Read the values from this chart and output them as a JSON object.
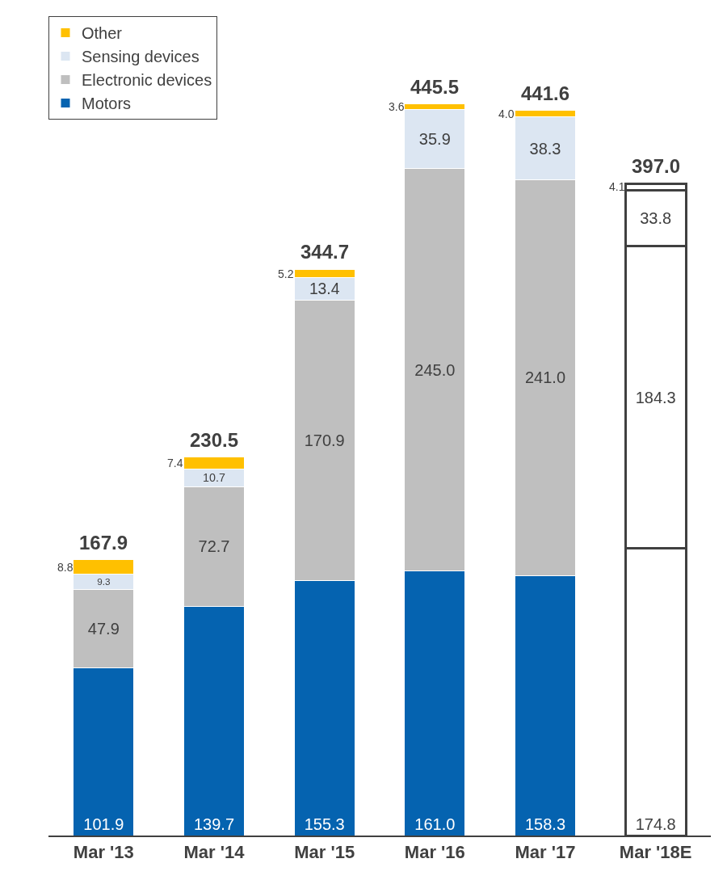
{
  "chart_data": {
    "type": "bar",
    "stacked": true,
    "legend": "top left",
    "tick_labels": "x",
    "categories": [
      "Mar '13",
      "Mar '14",
      "Mar '15",
      "Mar '16",
      "Mar '17",
      "Mar '18E"
    ],
    "series": [
      {
        "name": "Motors",
        "colors": [
          "#0563b0",
          "#0563b0",
          "#0563b0",
          "#0563b0",
          "#0563b0",
          "#ffffff"
        ],
        "values": [
          101.9,
          139.7,
          155.3,
          161.0,
          158.3,
          174.8
        ],
        "value_labels": [
          "101.9",
          "139.7",
          "155.3",
          "161.0",
          "158.3",
          "174.8"
        ]
      },
      {
        "name": "Electronic devices",
        "colors": [
          "#bfbfbf",
          "#bfbfbf",
          "#bfbfbf",
          "#bfbfbf",
          "#bfbfbf",
          "#ffffff"
        ],
        "values": [
          47.9,
          72.7,
          170.9,
          245.0,
          241.0,
          184.3
        ],
        "value_labels": [
          "47.9",
          "72.7",
          "170.9",
          "245.0",
          "241.0",
          "184.3"
        ]
      },
      {
        "name": "Sensing devices",
        "colors": [
          "#dce6f2",
          "#dce6f2",
          "#dce6f2",
          "#dce6f2",
          "#dce6f2",
          "#ffffff"
        ],
        "values": [
          9.3,
          10.7,
          13.4,
          35.9,
          38.3,
          33.8
        ],
        "value_labels": [
          "9.3",
          "10.7",
          "13.4",
          "35.9",
          "38.3",
          "33.8"
        ]
      },
      {
        "name": "Other",
        "colors": [
          "#ffc000",
          "#ffc000",
          "#ffc000",
          "#ffc000",
          "#ffc000",
          "#ffffff"
        ],
        "values": [
          8.8,
          7.4,
          5.2,
          3.6,
          4.0,
          4.1
        ],
        "value_labels": [
          "8.8",
          "7.4",
          "5.2",
          "3.6",
          "4.0",
          "4.1"
        ]
      }
    ],
    "totals": [
      "167.9",
      "230.5",
      "344.7",
      "445.5",
      "441.6",
      "397.0"
    ]
  }
}
